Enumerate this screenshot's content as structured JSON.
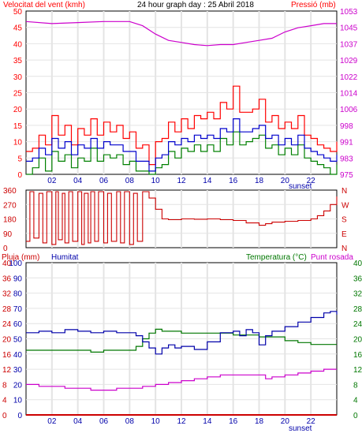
{
  "header": {
    "wind_label": "Velocitat del vent (kmh)",
    "title": "24 hour graph day : 25 Abril 2018",
    "pressure_label": "Pressió (mb)"
  },
  "lower_header": {
    "rain_label": "Pluja (mm)",
    "humidity_label": "Humitat",
    "temperature_label": "Temperatura (°C)",
    "dewpoint_label": "Punt rosada"
  },
  "colors": {
    "wind_gust": "#ff0000",
    "wind_avg": "#0000cc",
    "wind_min": "#008000",
    "pressure": "#cc00cc",
    "direction": "#cc0000",
    "humidity": "#0000aa",
    "temperature": "#007700",
    "dewpoint": "#cc00cc",
    "rain": "#cc0000",
    "grid": "#e4e4e4"
  },
  "chart_data": [
    {
      "id": "wind_pressure",
      "type": "line",
      "x_ticks": [
        "02",
        "04",
        "06",
        "08",
        "10",
        "12",
        "14",
        "16",
        "18",
        "20",
        "22"
      ],
      "x_annotation": "sunset",
      "left_axis": {
        "unit": "kmh",
        "ticks": [
          "0",
          "5",
          "10",
          "15",
          "20",
          "25",
          "30",
          "35",
          "40",
          "45",
          "50"
        ],
        "ylim": [
          0,
          50
        ]
      },
      "right_axis": {
        "unit": "mb",
        "ticks": [
          "975",
          "983",
          "991",
          "998",
          "1006",
          "1014",
          "1022",
          "1029",
          "1037",
          "1045",
          "1053"
        ],
        "ylim": [
          975,
          1053
        ]
      },
      "series": [
        {
          "key": "wind_gust",
          "axis": "left",
          "x": [
            0,
            0.5,
            1,
            1.5,
            2,
            2.5,
            3,
            3.5,
            4,
            4.5,
            5,
            5.5,
            6,
            6.5,
            7,
            7.5,
            8,
            8.5,
            9,
            9.5,
            10,
            10.5,
            11,
            11.5,
            12,
            12.5,
            13,
            13.5,
            14,
            14.5,
            15,
            15.5,
            16,
            16.5,
            17,
            17.5,
            18,
            18.5,
            19,
            19.5,
            20,
            20.5,
            21,
            21.5,
            22,
            22.5,
            23,
            23.5,
            24
          ],
          "y": [
            7,
            8,
            12,
            9,
            18,
            12,
            15,
            9,
            14,
            12,
            17,
            12,
            16,
            13,
            15,
            11,
            13,
            8,
            9,
            3,
            10,
            11,
            16,
            13,
            17,
            14,
            18,
            17,
            19,
            17,
            22,
            20,
            27,
            19,
            19,
            20,
            23,
            16,
            18,
            14,
            16,
            14,
            18,
            12,
            11,
            9,
            8,
            7,
            10
          ]
        },
        {
          "key": "wind_avg",
          "axis": "left",
          "x": [
            0,
            0.5,
            1,
            1.5,
            2,
            2.5,
            3,
            3.5,
            4,
            4.5,
            5,
            5.5,
            6,
            6.5,
            7,
            7.5,
            8,
            8.5,
            9,
            9.5,
            10,
            10.5,
            11,
            11.5,
            12,
            12.5,
            13,
            13.5,
            14,
            14.5,
            15,
            15.5,
            16,
            16.5,
            17,
            17.5,
            18,
            18.5,
            19,
            19.5,
            20,
            20.5,
            21,
            21.5,
            22,
            22.5,
            23,
            23.5,
            24
          ],
          "y": [
            4,
            5,
            8,
            6,
            11,
            8,
            10,
            6,
            9,
            8,
            11,
            8,
            10,
            9,
            9,
            7,
            7,
            4,
            4,
            1,
            5,
            6,
            10,
            9,
            11,
            10,
            12,
            11,
            12,
            11,
            14,
            13,
            17,
            13,
            13,
            14,
            15,
            11,
            12,
            9,
            11,
            9,
            12,
            8,
            7,
            6,
            5,
            4,
            6
          ]
        },
        {
          "key": "wind_min",
          "axis": "left",
          "x": [
            0,
            0.5,
            1,
            1.5,
            2,
            2.5,
            3,
            3.5,
            4,
            4.5,
            5,
            5.5,
            6,
            6.5,
            7,
            7.5,
            8,
            8.5,
            9,
            9.5,
            10,
            10.5,
            11,
            11.5,
            12,
            12.5,
            13,
            13.5,
            14,
            14.5,
            15,
            15.5,
            16,
            16.5,
            17,
            17.5,
            18,
            18.5,
            19,
            19.5,
            20,
            20.5,
            21,
            21.5,
            22,
            22.5,
            23,
            23.5,
            24
          ],
          "y": [
            0,
            2,
            5,
            1,
            7,
            4,
            6,
            2,
            5,
            4,
            8,
            4,
            6,
            5,
            6,
            3,
            4,
            1,
            1,
            0,
            2,
            3,
            7,
            5,
            8,
            7,
            9,
            7,
            9,
            7,
            11,
            9,
            13,
            9,
            10,
            11,
            12,
            8,
            9,
            6,
            8,
            6,
            9,
            5,
            4,
            3,
            2,
            0,
            3
          ]
        },
        {
          "key": "pressure",
          "axis": "right",
          "x": [
            0,
            2,
            4,
            6,
            8,
            9,
            10,
            11,
            12,
            13,
            14,
            15,
            16,
            17,
            18,
            19,
            20,
            21,
            22,
            23,
            24
          ],
          "y": [
            1048,
            1047,
            1047.5,
            1048,
            1048,
            1046,
            1042,
            1039,
            1038,
            1037,
            1036.5,
            1037,
            1037,
            1038,
            1039,
            1040,
            1043,
            1045,
            1046,
            1047,
            1047
          ]
        }
      ]
    },
    {
      "id": "wind_direction",
      "type": "line",
      "left_axis": {
        "unit": "degrees",
        "ticks": [
          "0",
          "90",
          "180",
          "270",
          "360"
        ],
        "ylim": [
          0,
          360
        ]
      },
      "right_axis": {
        "ticks": [
          "N",
          "E",
          "S",
          "W",
          "N"
        ]
      },
      "series": [
        {
          "key": "direction",
          "axis": "left",
          "x": [
            0,
            0.3,
            0.6,
            1,
            1.3,
            1.6,
            2,
            2.3,
            2.5,
            2.8,
            3,
            3.3,
            3.6,
            4,
            4.3,
            4.5,
            4.8,
            5,
            5.3,
            5.6,
            6,
            6.3,
            6.6,
            7,
            7.3,
            7.6,
            8,
            8.3,
            8.6,
            9,
            9.5,
            10,
            10.5,
            11,
            12,
            13,
            14,
            15,
            16,
            17,
            18,
            18.5,
            19,
            20,
            21,
            22,
            22.5,
            23,
            23.5,
            24
          ],
          "y": [
            40,
            350,
            60,
            340,
            30,
            350,
            20,
            350,
            50,
            340,
            30,
            350,
            40,
            350,
            20,
            340,
            30,
            350,
            40,
            350,
            30,
            340,
            40,
            350,
            30,
            350,
            20,
            340,
            40,
            350,
            310,
            240,
            180,
            175,
            180,
            178,
            180,
            175,
            170,
            155,
            140,
            150,
            160,
            165,
            170,
            180,
            200,
            230,
            270,
            320
          ]
        }
      ]
    },
    {
      "id": "humidity_temperature",
      "type": "line",
      "x_ticks": [
        "02",
        "04",
        "06",
        "08",
        "10",
        "12",
        "14",
        "16",
        "18",
        "20",
        "22"
      ],
      "x_annotation": "sunset",
      "rain_axis": {
        "unit": "mm",
        "ticks": [
          "0",
          "4",
          "8",
          "12",
          "16",
          "20",
          "24",
          "28",
          "32",
          "36",
          "40"
        ],
        "ylim": [
          0,
          40
        ]
      },
      "humidity_axis": {
        "unit": "%",
        "ticks": [
          "0",
          "10",
          "20",
          "30",
          "40",
          "50",
          "60",
          "70",
          "80",
          "90",
          "100"
        ],
        "ylim": [
          0,
          100
        ]
      },
      "temperature_axis": {
        "unit": "°C",
        "ticks": [
          "0",
          "4",
          "8",
          "12",
          "16",
          "20",
          "24",
          "28",
          "32",
          "36",
          "40"
        ],
        "ylim": [
          0,
          40
        ]
      },
      "series": [
        {
          "key": "humidity",
          "axis": "humidity",
          "x": [
            0,
            1,
            2,
            3,
            4,
            5,
            6,
            7,
            8,
            8.5,
            9,
            9.5,
            10,
            10.5,
            11,
            11.5,
            12,
            13,
            14,
            15,
            16,
            16.5,
            17,
            17.5,
            18,
            18.5,
            19,
            20,
            21,
            22,
            23,
            23.5,
            24
          ],
          "y": [
            54,
            55,
            54,
            56,
            55,
            54,
            55,
            54,
            54,
            52,
            48,
            44,
            40,
            44,
            46,
            44,
            45,
            43,
            48,
            54,
            55,
            52,
            56,
            54,
            46,
            52,
            55,
            58,
            61,
            64,
            67,
            68,
            66
          ]
        },
        {
          "key": "temperature",
          "axis": "temperature",
          "x": [
            0,
            1,
            2,
            3,
            4,
            5,
            6,
            7,
            8,
            8.5,
            9,
            9.5,
            10,
            10.5,
            11,
            12,
            13,
            14,
            15,
            16,
            17,
            18,
            19,
            20,
            21,
            22,
            23,
            24
          ],
          "y": [
            17,
            17,
            17,
            17,
            17,
            16.5,
            17,
            17,
            17,
            18,
            20,
            21.5,
            22.5,
            22,
            22,
            21.5,
            21.5,
            21.5,
            21.5,
            21,
            21,
            20.5,
            20.5,
            19.5,
            19,
            18.5,
            18.5,
            18.5
          ]
        },
        {
          "key": "dewpoint",
          "axis": "temperature",
          "x": [
            0,
            1,
            2,
            3,
            4,
            5,
            6,
            7,
            8,
            9,
            10,
            11,
            12,
            13,
            14,
            15,
            16,
            17,
            18,
            18.5,
            19,
            20,
            21,
            22,
            23,
            24
          ],
          "y": [
            8,
            7.5,
            7.5,
            7,
            7,
            6.5,
            6.5,
            7,
            7,
            7.5,
            8,
            8.5,
            9,
            9.5,
            10,
            10.5,
            10.5,
            10.5,
            10.5,
            9.5,
            10,
            10.5,
            11,
            11.5,
            12,
            12
          ]
        },
        {
          "key": "rain",
          "axis": "rain",
          "x": [
            0,
            24
          ],
          "y": [
            0,
            0
          ]
        }
      ]
    }
  ]
}
